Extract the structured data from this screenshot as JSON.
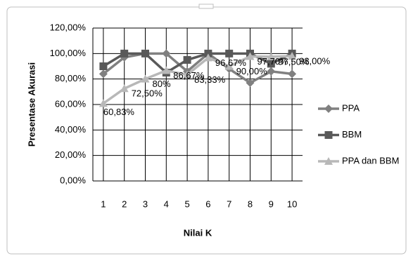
{
  "chart_data": {
    "type": "line",
    "y_label": "Presentase Akurasi",
    "x_label": "Nilai K",
    "categories": [
      "1",
      "2",
      "3",
      "4",
      "5",
      "6",
      "7",
      "8",
      "9",
      "10"
    ],
    "series": [
      {
        "name": "PPA",
        "color": "#808080",
        "marker": "diamond",
        "values": [
          84,
          97,
          100,
          100,
          86,
          100,
          88,
          77,
          86,
          84
        ]
      },
      {
        "name": "BBM",
        "color": "#595959",
        "marker": "square",
        "values": [
          90,
          100,
          100,
          85,
          95,
          100,
          100,
          100,
          92,
          100
        ]
      },
      {
        "name": "PPA dan BBM",
        "color": "#b8b8b8",
        "marker": "triangle",
        "values": [
          60.83,
          72.5,
          80,
          86.67,
          83.33,
          96.67,
          90,
          97.7,
          97.5,
          98
        ],
        "value_labels": [
          "60,83%",
          "72,50%",
          "80%",
          "86,67%",
          "83,33%",
          "96,67%",
          "90,00%",
          "97,70%",
          "97,50%",
          "98,00%"
        ]
      }
    ],
    "ylim": [
      0,
      120
    ],
    "yticks": [
      {
        "value": 0,
        "label": "0,00%"
      },
      {
        "value": 20,
        "label": "20,00%"
      },
      {
        "value": 40,
        "label": "40,00%"
      },
      {
        "value": 60,
        "label": "60,00%"
      },
      {
        "value": 80,
        "label": "80,00%"
      },
      {
        "value": 100,
        "label": "100,00%"
      },
      {
        "value": 120,
        "label": "120,00%"
      }
    ],
    "grid": true,
    "legend": "right"
  }
}
